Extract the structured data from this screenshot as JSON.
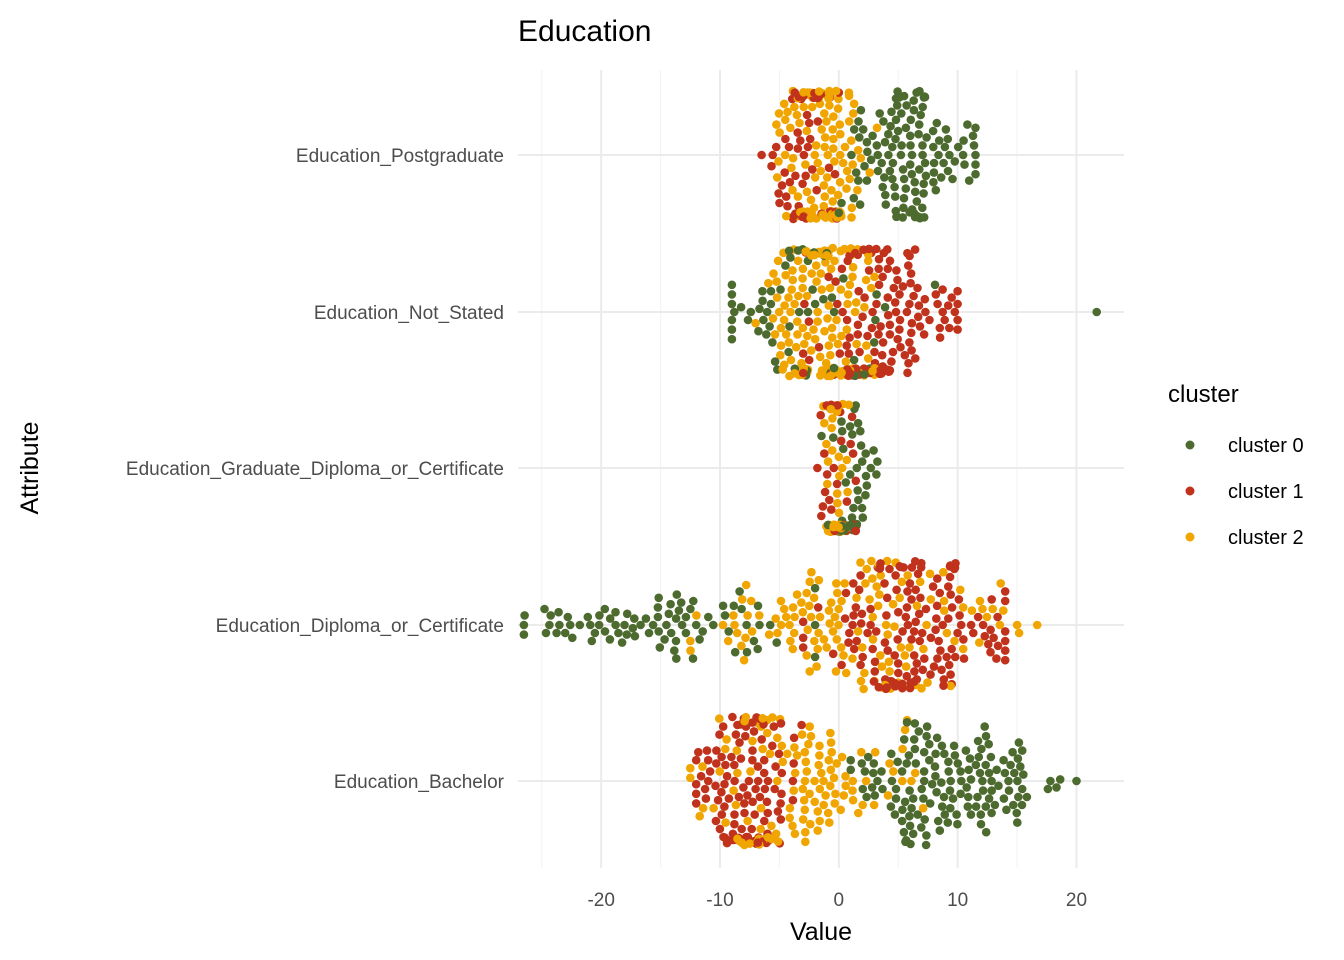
{
  "chart_data": {
    "type": "scatter",
    "subtype": "beeswarm",
    "title": "Education",
    "xlabel": "Value",
    "ylabel": "Attribute",
    "xlim": [
      -27,
      24
    ],
    "x_ticks": [
      -20,
      -10,
      0,
      10,
      20
    ],
    "grid": true,
    "legend": {
      "title": "cluster",
      "position": "right"
    },
    "categories": [
      "Education_Postgraduate",
      "Education_Not_Stated",
      "Education_Graduate_Diploma_or_Certificate",
      "Education_Diploma_or_Certificate",
      "Education_Bachelor"
    ],
    "series": [
      {
        "name": "cluster 0",
        "color": "#4e6b2f",
        "distributions": [
          {
            "category": "Education_Postgraduate",
            "n": 130,
            "min": 0,
            "max": 11.5,
            "center": 6,
            "spread": 2.6,
            "outliers": []
          },
          {
            "category": "Education_Not_Stated",
            "n": 70,
            "min": -9,
            "max": 14.5,
            "center": -3,
            "spread": 4,
            "outliers": [
              21.7
            ]
          },
          {
            "category": "Education_Graduate_Diploma_or_Certificate",
            "n": 60,
            "min": -2.5,
            "max": 3.3,
            "center": 1.2,
            "spread": 1,
            "outliers": []
          },
          {
            "category": "Education_Diploma_or_Certificate",
            "n": 85,
            "min": -26.5,
            "max": -2,
            "center": -15,
            "spread": 6,
            "outliers": []
          },
          {
            "category": "Education_Bachelor",
            "n": 150,
            "min": 1,
            "max": 20,
            "center": 10,
            "spread": 4.5,
            "outliers": []
          }
        ]
      },
      {
        "name": "cluster 1",
        "color": "#c0321c",
        "distributions": [
          {
            "category": "Education_Postgraduate",
            "n": 60,
            "min": -6.5,
            "max": 0,
            "center": -3,
            "spread": 1.5,
            "outliers": []
          },
          {
            "category": "Education_Not_Stated",
            "n": 150,
            "min": -3,
            "max": 10,
            "center": 3,
            "spread": 3,
            "outliers": []
          },
          {
            "category": "Education_Graduate_Diploma_or_Certificate",
            "n": 45,
            "min": -1.8,
            "max": 1.5,
            "center": 0,
            "spread": 0.8,
            "outliers": []
          },
          {
            "category": "Education_Diploma_or_Certificate",
            "n": 150,
            "min": -3,
            "max": 14,
            "center": 7,
            "spread": 4.5,
            "outliers": []
          },
          {
            "category": "Education_Bachelor",
            "n": 110,
            "min": -12,
            "max": -2,
            "center": -8,
            "spread": 2.2,
            "outliers": []
          }
        ]
      },
      {
        "name": "cluster 2",
        "color": "#f0a500",
        "distributions": [
          {
            "category": "Education_Postgraduate",
            "n": 130,
            "min": -6,
            "max": 7,
            "center": -1.5,
            "spread": 1.8,
            "outliers": []
          },
          {
            "category": "Education_Not_Stated",
            "n": 170,
            "min": -7,
            "max": 3,
            "center": -1.5,
            "spread": 2.5,
            "outliers": []
          },
          {
            "category": "Education_Graduate_Diploma_or_Certificate",
            "n": 55,
            "min": -1.3,
            "max": 1,
            "center": -0.2,
            "spread": 0.5,
            "outliers": []
          },
          {
            "category": "Education_Diploma_or_Certificate",
            "n": 140,
            "min": -12.5,
            "max": 17,
            "center": 2,
            "spread": 6,
            "outliers": []
          },
          {
            "category": "Education_Bachelor",
            "n": 130,
            "min": -12.5,
            "max": 13,
            "center": -3,
            "spread": 4.5,
            "outliers": []
          }
        ]
      }
    ]
  }
}
